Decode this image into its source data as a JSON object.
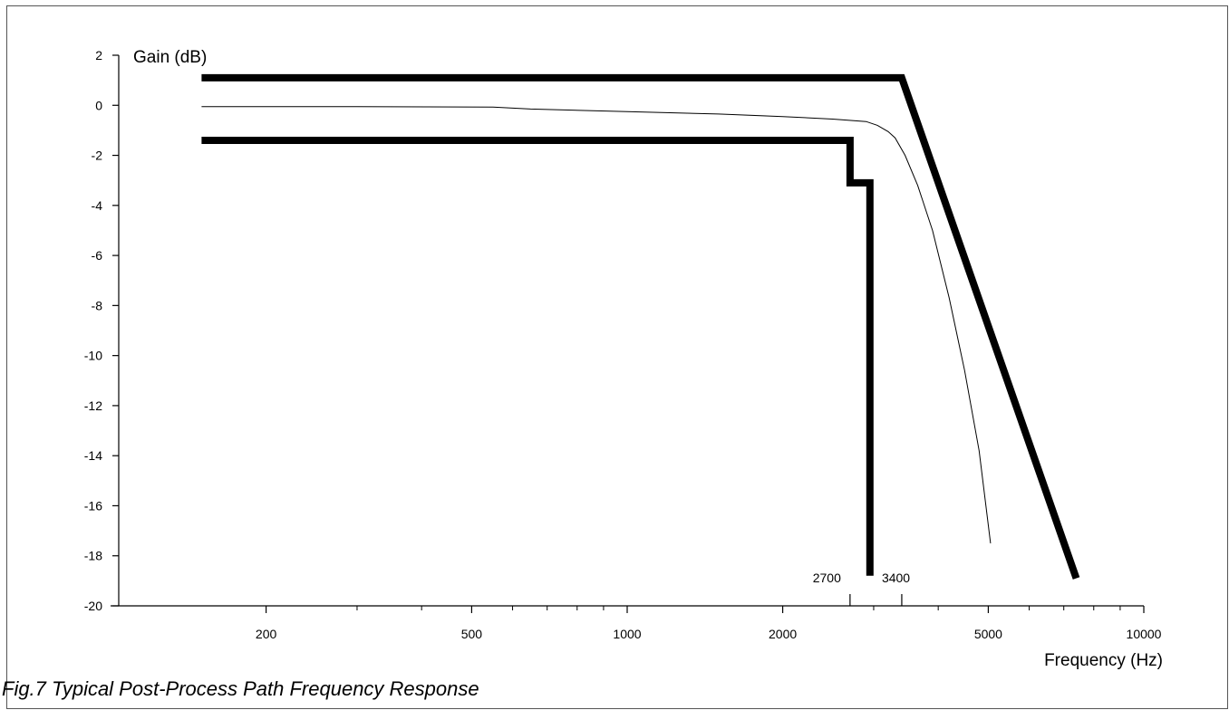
{
  "caption": "Fig.7 Typical Post-Process Path Frequency Response",
  "chart_data": {
    "type": "line",
    "title": "",
    "xlabel": "Frequency (Hz)",
    "ylabel": "Gain (dB)",
    "xscale": "log",
    "xlim": [
      100,
      10000
    ],
    "ylim": [
      -20,
      2
    ],
    "yticks": [
      2,
      0,
      -2,
      -4,
      -6,
      -8,
      -10,
      -12,
      -14,
      -16,
      -18,
      -20
    ],
    "ytick_labels": [
      "2",
      "0",
      "-2",
      "-4",
      "-6",
      "-8",
      "-10",
      "-12",
      "-14",
      "-16",
      "-18",
      "-20"
    ],
    "xticks_labeled": [
      200,
      500,
      1000,
      2000,
      5000,
      10000
    ],
    "xtick_labels": [
      "200",
      "500",
      "1000",
      "2000",
      "5000",
      "10000"
    ],
    "xticks_minor": [
      300,
      400,
      600,
      700,
      800,
      900,
      3000,
      4000,
      6000,
      7000,
      8000,
      9000
    ],
    "grid": false,
    "legend": "none",
    "annotations": [
      {
        "text": "2700",
        "x": 2700,
        "align": "right"
      },
      {
        "text": "3400",
        "x": 3400,
        "align": "left"
      }
    ],
    "annotation_ticks": [
      2700,
      3400
    ],
    "series": [
      {
        "role": "upper-limit-mask",
        "style": "thick",
        "points": [
          [
            150,
            1.1
          ],
          [
            3400,
            1.1
          ],
          [
            7400,
            -18.9
          ]
        ]
      },
      {
        "role": "lower-limit-mask",
        "style": "thick",
        "points": [
          [
            150,
            -1.4
          ],
          [
            2700,
            -1.4
          ],
          [
            2700,
            -3.1
          ],
          [
            2950,
            -3.1
          ],
          [
            2950,
            -18.8
          ]
        ]
      },
      {
        "role": "typical-response",
        "style": "thin",
        "points": [
          [
            150,
            -0.05
          ],
          [
            300,
            -0.05
          ],
          [
            550,
            -0.07
          ],
          [
            650,
            -0.15
          ],
          [
            1000,
            -0.25
          ],
          [
            1500,
            -0.35
          ],
          [
            2000,
            -0.45
          ],
          [
            2500,
            -0.55
          ],
          [
            2900,
            -0.65
          ],
          [
            3050,
            -0.8
          ],
          [
            3200,
            -1.05
          ],
          [
            3300,
            -1.3
          ],
          [
            3450,
            -2.0
          ],
          [
            3650,
            -3.2
          ],
          [
            3900,
            -5.0
          ],
          [
            4200,
            -7.7
          ],
          [
            4500,
            -10.6
          ],
          [
            4800,
            -13.8
          ],
          [
            5050,
            -17.5
          ]
        ]
      }
    ]
  }
}
